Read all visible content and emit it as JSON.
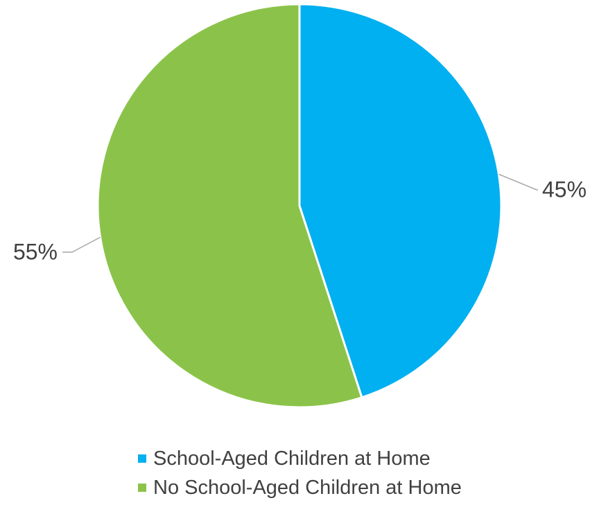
{
  "chart_data": {
    "type": "pie",
    "slices": [
      {
        "name": "School-Aged Children at Home",
        "value": 45,
        "label": "45%",
        "color": "#00B0F0"
      },
      {
        "name": "No School-Aged Children at Home",
        "value": 55,
        "label": "55%",
        "color": "#8BC34A"
      }
    ],
    "start_angle": "12 o'clock",
    "direction": "clockwise",
    "legend_position": "bottom",
    "title": ""
  },
  "legend": {
    "items": [
      {
        "label": "School-Aged Children at Home",
        "color": "#00B0F0"
      },
      {
        "label": "No School-Aged Children at Home",
        "color": "#8BC34A"
      }
    ]
  }
}
